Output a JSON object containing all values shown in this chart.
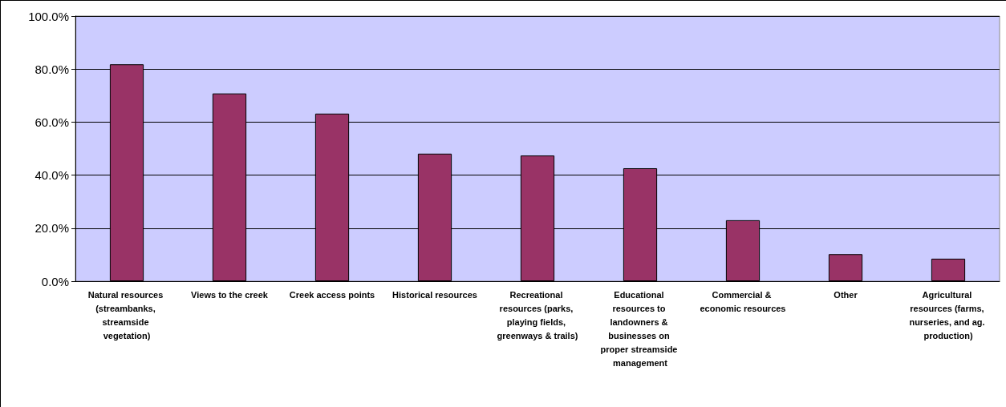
{
  "chart_data": {
    "type": "bar",
    "categories": [
      "Natural resources (streambanks, streamside vegetation)",
      "Views to the creek",
      "Creek access points",
      "Historical resources",
      "Recreational resources (parks, playing fields, greenways & trails)",
      "Educational resources to landowners & businesses on proper streamside management",
      "Commercial & economic resources",
      "Other",
      "Agricultural resources (farms, nurseries, and ag. production)"
    ],
    "values": [
      81.8,
      70.8,
      63.2,
      48.1,
      47.4,
      42.6,
      23.0,
      10.2,
      8.5
    ],
    "color": "#993366",
    "ylim": [
      0,
      100
    ],
    "yticks": [
      {
        "value": 0,
        "label": "0.0%"
      },
      {
        "value": 20,
        "label": "20.0%"
      },
      {
        "value": 40,
        "label": "40.0%"
      },
      {
        "value": 60,
        "label": "60.0%"
      },
      {
        "value": 80,
        "label": "80.0%"
      },
      {
        "value": 100,
        "label": "100.0%"
      }
    ],
    "grid": "y"
  }
}
